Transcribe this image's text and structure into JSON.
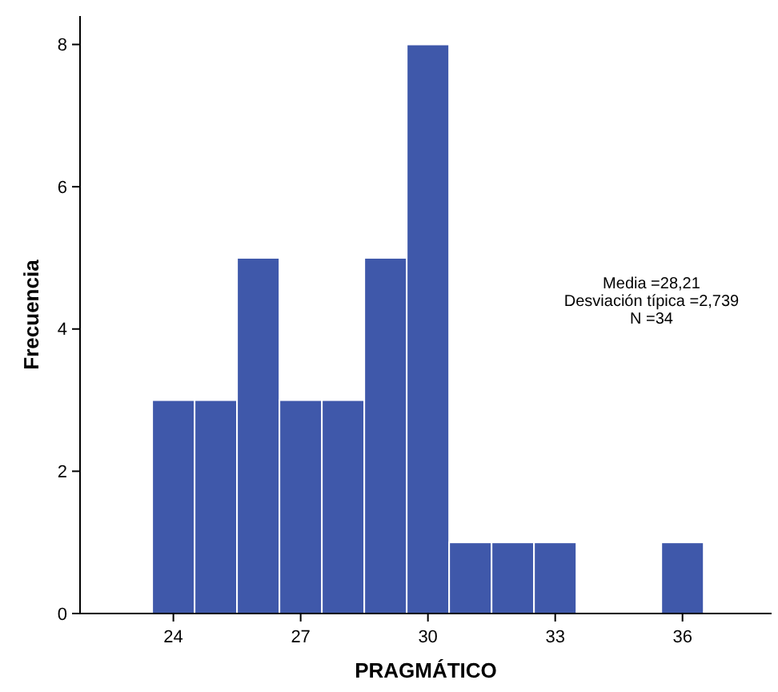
{
  "chart_data": {
    "type": "histogram",
    "xlabel": "PRAGMÁTICO",
    "ylabel": "Frecuencia",
    "bins": [
      23.5,
      24.5,
      25.5,
      26.5,
      27.5,
      28.5,
      29.5,
      30.5,
      31.5,
      32.5,
      33.5,
      34.5,
      35.5,
      36.5
    ],
    "values": [
      3,
      3,
      5,
      3,
      3,
      5,
      8,
      1,
      1,
      1,
      0,
      0,
      1
    ],
    "color": "#3f58aa",
    "xlim": [
      21.8,
      38.1
    ],
    "xticks": [
      24,
      27,
      30,
      33,
      36
    ],
    "ylim": [
      0,
      8.4
    ],
    "yticks": [
      0,
      2,
      4,
      6,
      8
    ],
    "grid": false,
    "annotations": [
      "Media =28,21",
      "Desviación típica =2,739",
      "N =34"
    ]
  }
}
